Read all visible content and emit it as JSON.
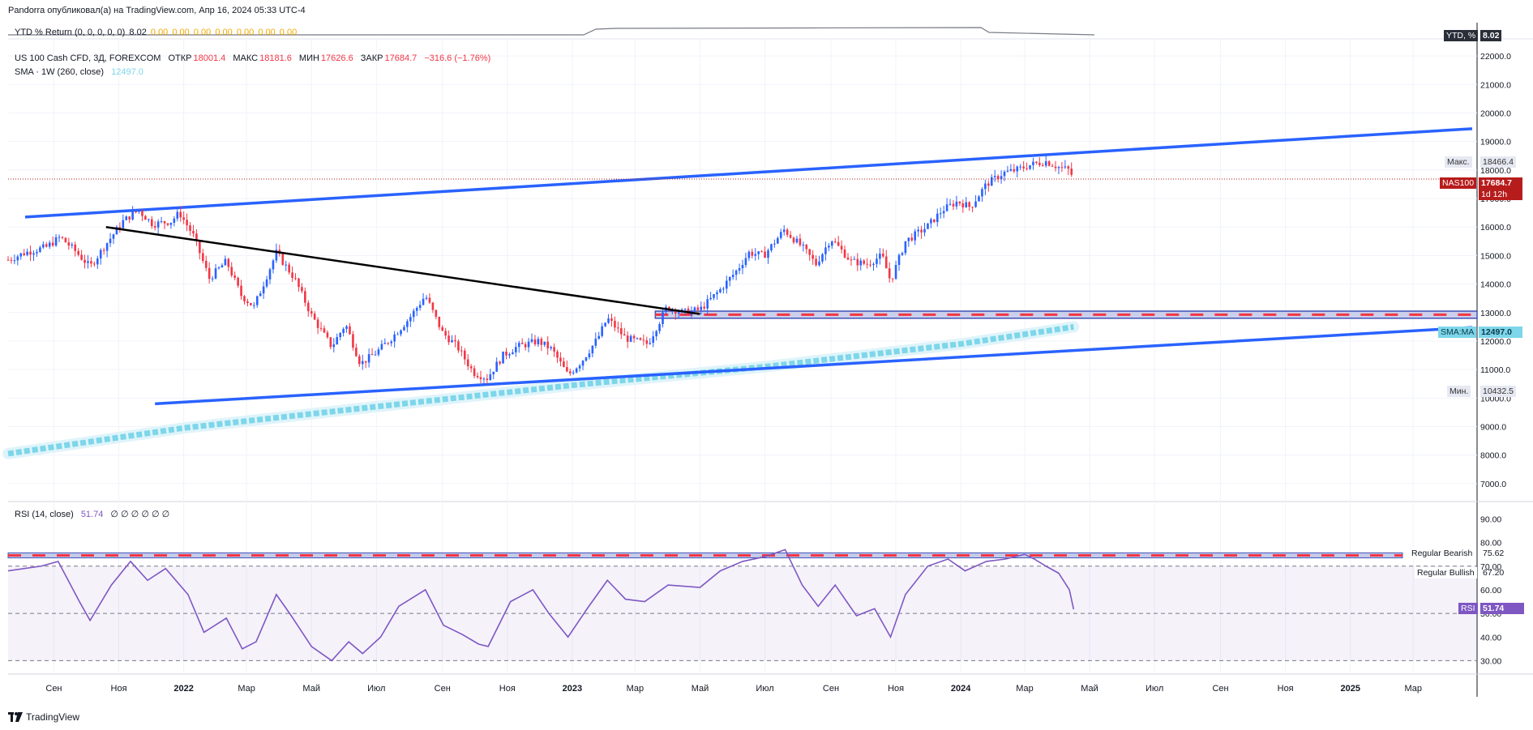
{
  "header": {
    "published": "Pandorra опубликовал(а) на TradingView.com, Апр 16, 2024 05:33 UTC-4"
  },
  "ytd": {
    "label": "YTD % Return (0, 0, 0, 0, 0)",
    "value": "8.02",
    "extra_values": [
      "0.00",
      "0.00",
      "0.00",
      "0.00",
      "0.00",
      "0.00",
      "0.00"
    ],
    "tag_label": "YTD, %",
    "tag_value": "8.02",
    "colors": {
      "label": "#131722",
      "extra": "#f2a900",
      "tag_bg": "#2a2e39"
    }
  },
  "main_legend": {
    "symbol": "US 100 Cash CFD, 3Д, FOREXCOM",
    "open_label": "ОТКР",
    "open": "18001.4",
    "high_label": "МАКС",
    "high": "18181.6",
    "low_label": "МИН",
    "low": "17626.6",
    "close_label": "ЗАКР",
    "close": "17684.7",
    "change": "−316.6 (−1.76%)",
    "sma_label": "SMA · 1W (260, close)",
    "sma_value": "12497.0"
  },
  "price_tags": {
    "max_label": "Макс.",
    "max_value": "18466.4",
    "min_label": "Мин.",
    "min_value": "10432.5",
    "symbol_tag": "NAS100",
    "last_value": "17684.7",
    "countdown": "1d 12h",
    "sma_tag": "SMA:MA",
    "sma_value": "12497.0"
  },
  "rsi_legend": {
    "label": "RSI (14, close)",
    "value": "51.74",
    "extra": "∅ ∅ ∅ ∅ ∅ ∅",
    "tag_label": "RSI",
    "tag_value": "51.74",
    "bearish_label": "Regular Bearish",
    "bullish_label": "Regular Bullish",
    "bearish_value": "75.62",
    "bullish_value": "67.20"
  },
  "footer": {
    "brand": "TradingView"
  },
  "chart_data": {
    "type": "candlestick",
    "timeframe": "3D",
    "price_axis": {
      "ticks": [
        "7000.0",
        "8000.0",
        "9000.0",
        "10000.0",
        "11000.0",
        "12000.0",
        "13000.0",
        "14000.0",
        "15000.0",
        "16000.0",
        "17000.0",
        "18000.0",
        "19000.0",
        "20000.0",
        "21000.0",
        "22000.0"
      ],
      "range": [
        6400,
        22600
      ]
    },
    "rsi_axis": {
      "ticks": [
        "30.00",
        "40.00",
        "50.00",
        "60.00",
        "70.00",
        "80.00",
        "90.00"
      ],
      "range": [
        25,
        97
      ],
      "levels": [
        70,
        50,
        30
      ]
    },
    "time_axis": {
      "labels": [
        "Сен",
        "Ноя",
        "2022",
        "Мар",
        "Май",
        "Июл",
        "Сен",
        "Ноя",
        "2023",
        "Мар",
        "Май",
        "Июл",
        "Сен",
        "Ноя",
        "2024",
        "Мар",
        "Май",
        "Июл",
        "Сен",
        "Ноя",
        "2025",
        "Мар"
      ],
      "bold": [
        "2022",
        "2023",
        "2024",
        "2025"
      ],
      "range": [
        "2021-07-20",
        "2025-04-30"
      ],
      "label_dates": [
        "2021-09-01",
        "2021-11-01",
        "2022-01-01",
        "2022-03-01",
        "2022-05-01",
        "2022-07-01",
        "2022-09-01",
        "2022-11-01",
        "2023-01-01",
        "2023-03-01",
        "2023-05-01",
        "2023-07-01",
        "2023-09-01",
        "2023-11-01",
        "2024-01-01",
        "2024-03-01",
        "2024-05-01",
        "2024-07-01",
        "2024-09-01",
        "2024-11-01",
        "2025-01-01",
        "2025-03-01"
      ]
    },
    "price_path": [
      [
        "2021-07-20",
        14850
      ],
      [
        "2021-08-05",
        15100
      ],
      [
        "2021-08-25",
        15300
      ],
      [
        "2021-09-07",
        15650
      ],
      [
        "2021-09-20",
        15200
      ],
      [
        "2021-10-05",
        14600
      ],
      [
        "2021-10-20",
        15400
      ],
      [
        "2021-11-05",
        16200
      ],
      [
        "2021-11-19",
        16600
      ],
      [
        "2021-12-03",
        16100
      ],
      [
        "2021-12-20",
        16200
      ],
      [
        "2021-12-28",
        16500
      ],
      [
        "2022-01-10",
        15700
      ],
      [
        "2022-01-25",
        14200
      ],
      [
        "2022-02-10",
        14800
      ],
      [
        "2022-02-24",
        13600
      ],
      [
        "2022-03-08",
        13200
      ],
      [
        "2022-03-29",
        15100
      ],
      [
        "2022-04-15",
        14200
      ],
      [
        "2022-05-01",
        12900
      ],
      [
        "2022-05-20",
        11800
      ],
      [
        "2022-06-02",
        12600
      ],
      [
        "2022-06-16",
        11200
      ],
      [
        "2022-07-01",
        11600
      ],
      [
        "2022-07-15",
        12100
      ],
      [
        "2022-08-01",
        12800
      ],
      [
        "2022-08-16",
        13600
      ],
      [
        "2022-09-01",
        12300
      ],
      [
        "2022-09-15",
        11800
      ],
      [
        "2022-09-30",
        10900
      ],
      [
        "2022-10-13",
        10700
      ],
      [
        "2022-10-28",
        11500
      ],
      [
        "2022-11-10",
        11800
      ],
      [
        "2022-11-30",
        12000
      ],
      [
        "2022-12-13",
        11700
      ],
      [
        "2022-12-28",
        10800
      ],
      [
        "2023-01-10",
        11300
      ],
      [
        "2023-01-25",
        12100
      ],
      [
        "2023-02-03",
        12800
      ],
      [
        "2023-02-20",
        12100
      ],
      [
        "2023-03-13",
        11900
      ],
      [
        "2023-03-31",
        13200
      ],
      [
        "2023-04-15",
        13000
      ],
      [
        "2023-05-01",
        13100
      ],
      [
        "2023-05-20",
        13800
      ],
      [
        "2023-06-05",
        14500
      ],
      [
        "2023-06-16",
        15100
      ],
      [
        "2023-06-30",
        15000
      ],
      [
        "2023-07-19",
        15900
      ],
      [
        "2023-08-05",
        15300
      ],
      [
        "2023-08-18",
        14700
      ],
      [
        "2023-09-01",
        15600
      ],
      [
        "2023-09-20",
        14800
      ],
      [
        "2023-10-05",
        14700
      ],
      [
        "2023-10-19",
        15000
      ],
      [
        "2023-10-27",
        14100
      ],
      [
        "2023-11-10",
        15500
      ],
      [
        "2023-11-30",
        16000
      ],
      [
        "2023-12-15",
        16600
      ],
      [
        "2023-12-29",
        16900
      ],
      [
        "2024-01-10",
        16700
      ],
      [
        "2024-01-25",
        17500
      ],
      [
        "2024-02-10",
        17900
      ],
      [
        "2024-02-22",
        18000
      ],
      [
        "2024-03-08",
        18200
      ],
      [
        "2024-03-21",
        18300
      ],
      [
        "2024-04-02",
        18100
      ],
      [
        "2024-04-12",
        18000
      ],
      [
        "2024-04-16",
        17684.7
      ]
    ],
    "sma_path": [
      [
        "2021-07-20",
        8050
      ],
      [
        "2022-01-01",
        8950
      ],
      [
        "2022-07-01",
        9700
      ],
      [
        "2023-01-01",
        10450
      ],
      [
        "2023-07-01",
        11100
      ],
      [
        "2024-01-01",
        11900
      ],
      [
        "2024-04-16",
        12497
      ]
    ],
    "rsi_path": [
      [
        "2021-07-20",
        68
      ],
      [
        "2021-08-20",
        70
      ],
      [
        "2021-09-05",
        72
      ],
      [
        "2021-09-25",
        55
      ],
      [
        "2021-10-05",
        47
      ],
      [
        "2021-10-25",
        62
      ],
      [
        "2021-11-12",
        72
      ],
      [
        "2021-11-28",
        64
      ],
      [
        "2021-12-15",
        69
      ],
      [
        "2022-01-05",
        58
      ],
      [
        "2022-01-20",
        42
      ],
      [
        "2022-02-10",
        48
      ],
      [
        "2022-02-25",
        35
      ],
      [
        "2022-03-10",
        38
      ],
      [
        "2022-03-29",
        58
      ],
      [
        "2022-04-12",
        49
      ],
      [
        "2022-05-01",
        36
      ],
      [
        "2022-05-20",
        30
      ],
      [
        "2022-06-05",
        38
      ],
      [
        "2022-06-18",
        33
      ],
      [
        "2022-07-05",
        40
      ],
      [
        "2022-07-22",
        53
      ],
      [
        "2022-08-16",
        60
      ],
      [
        "2022-09-02",
        45
      ],
      [
        "2022-09-20",
        41
      ],
      [
        "2022-10-05",
        37
      ],
      [
        "2022-10-14",
        36
      ],
      [
        "2022-11-04",
        55
      ],
      [
        "2022-11-25",
        60
      ],
      [
        "2022-12-10",
        50
      ],
      [
        "2022-12-28",
        40
      ],
      [
        "2023-01-15",
        52
      ],
      [
        "2023-02-03",
        64
      ],
      [
        "2023-02-20",
        56
      ],
      [
        "2023-03-10",
        55
      ],
      [
        "2023-04-01",
        62
      ],
      [
        "2023-05-01",
        61
      ],
      [
        "2023-05-20",
        68
      ],
      [
        "2023-06-10",
        72
      ],
      [
        "2023-07-01",
        74
      ],
      [
        "2023-07-20",
        77
      ],
      [
        "2023-08-05",
        62
      ],
      [
        "2023-08-20",
        53
      ],
      [
        "2023-09-05",
        62
      ],
      [
        "2023-09-25",
        49
      ],
      [
        "2023-10-12",
        52
      ],
      [
        "2023-10-27",
        40
      ],
      [
        "2023-11-10",
        58
      ],
      [
        "2023-12-01",
        70
      ],
      [
        "2023-12-20",
        73
      ],
      [
        "2024-01-05",
        68
      ],
      [
        "2024-01-25",
        72
      ],
      [
        "2024-02-12",
        73
      ],
      [
        "2024-03-01",
        75
      ],
      [
        "2024-03-10",
        73
      ],
      [
        "2024-03-21",
        70
      ],
      [
        "2024-04-02",
        67
      ],
      [
        "2024-04-12",
        60
      ],
      [
        "2024-04-16",
        51.74
      ]
    ],
    "annotations": {
      "upper_channel": [
        [
          "2021-08-05",
          16350
        ],
        [
          "2025-04-30",
          19450
        ]
      ],
      "lower_channel": [
        [
          "2021-12-05",
          9800
        ],
        [
          "2025-04-30",
          12480
        ]
      ],
      "descending_trendline": [
        [
          "2021-10-20",
          16000
        ],
        [
          "2023-05-01",
          12950
        ]
      ],
      "support_zone": {
        "from_date": "2023-03-20",
        "low": 12800,
        "high": 13050
      },
      "rsi_zone": {
        "low": 73.5,
        "high": 75.62
      }
    },
    "colors": {
      "up": "#2962ff",
      "down": "#f23645",
      "channel": "#2962ff",
      "trendline": "#000000",
      "sma": "#7dd6ea",
      "rsi": "#7e57c2",
      "zone_fill": "#c5cae9",
      "zone_stroke": "#3f51b5",
      "zone_dash": "#f23645",
      "last_price": "#b71c1c"
    }
  }
}
